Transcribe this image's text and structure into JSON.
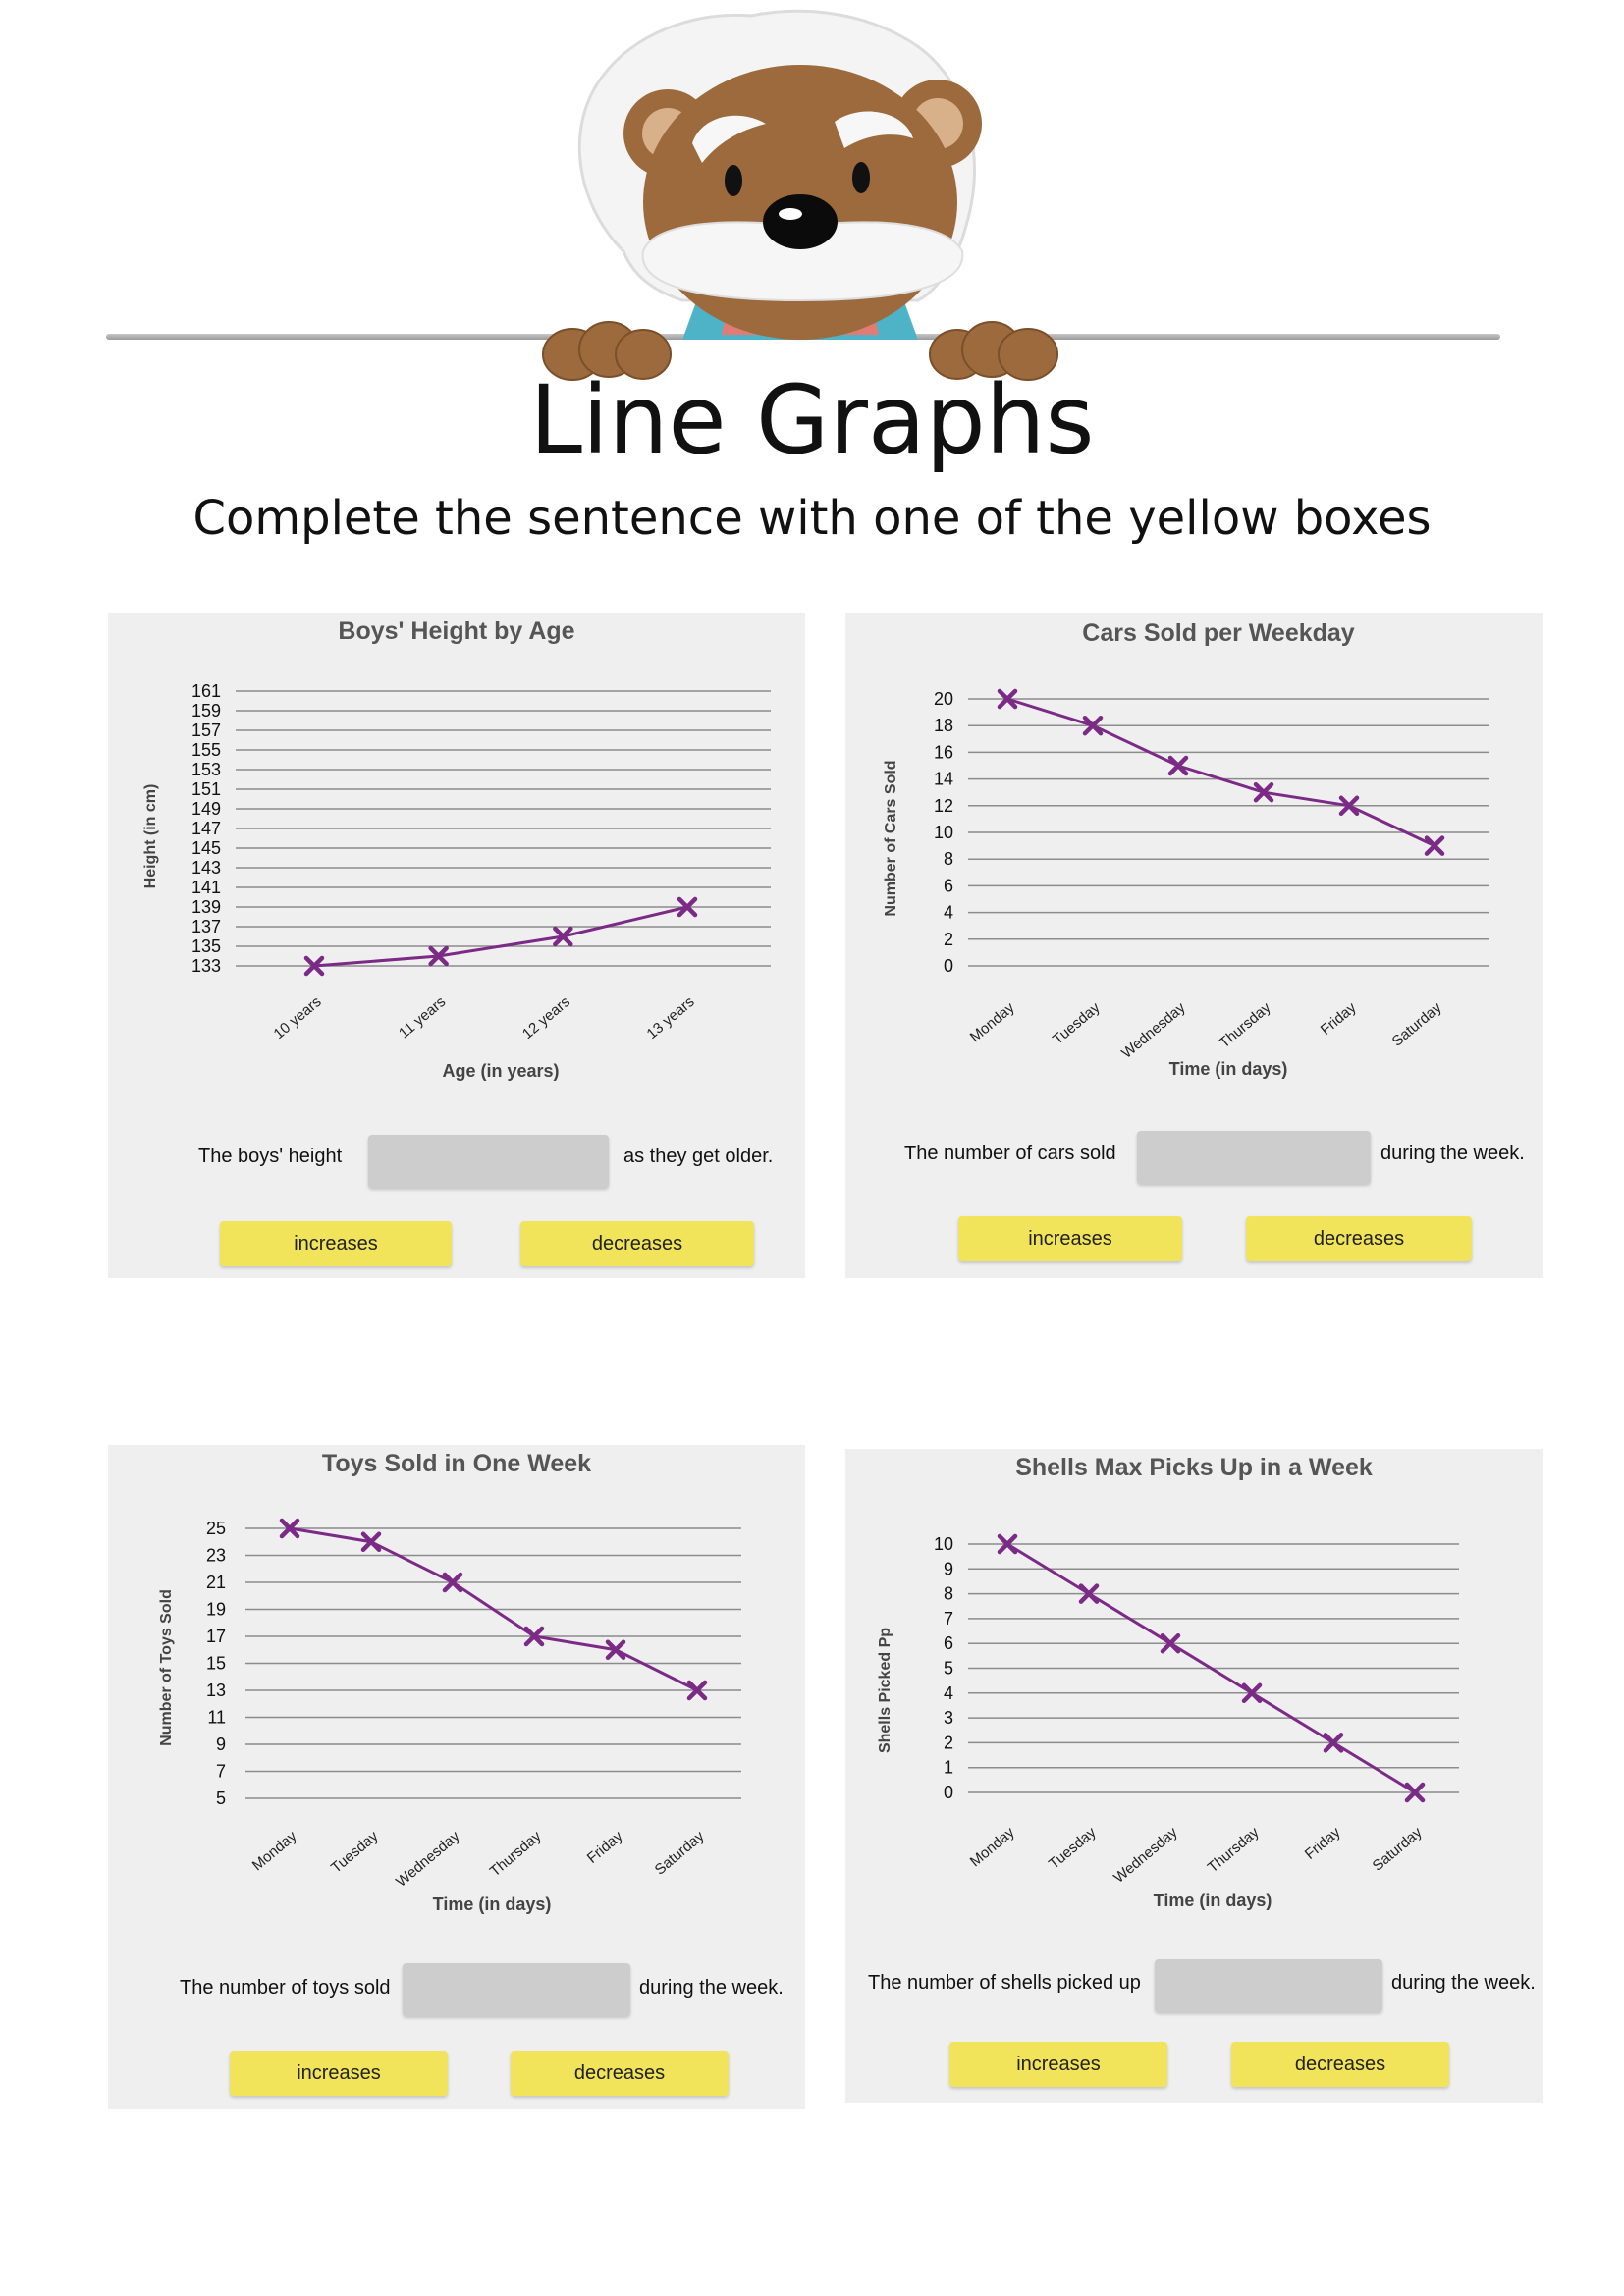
{
  "page": {
    "title": "Line Graphs",
    "subtitle": "Complete the sentence with one of the yellow boxes"
  },
  "colors": {
    "line": "#7b2a86",
    "option_bg": "#f1e45a",
    "panel_bg": "#efefef",
    "blank_bg": "#cdcdcd"
  },
  "panels": [
    {
      "sentence_before": "The boys' height",
      "sentence_after": "as they get older.",
      "options": [
        "increases",
        "decreases"
      ]
    },
    {
      "sentence_before": "The number of cars sold",
      "sentence_after": "during the week.",
      "options": [
        "increases",
        "decreases"
      ]
    },
    {
      "sentence_before": "The number of toys sold",
      "sentence_after": "during the week.",
      "options": [
        "increases",
        "decreases"
      ]
    },
    {
      "sentence_before": "The number of shells picked up",
      "sentence_after": "during the week.",
      "options": [
        "increases",
        "decreases"
      ]
    }
  ],
  "chart_data": [
    {
      "type": "line",
      "title": "Boys' Height by Age",
      "xlabel": "Age (in years)",
      "ylabel": "Height (in cm)",
      "categories": [
        "10 years",
        "11 years",
        "12 years",
        "13 years"
      ],
      "values": [
        133,
        134,
        136,
        139
      ],
      "yticks": [
        133,
        135,
        137,
        139,
        141,
        143,
        145,
        147,
        149,
        151,
        153,
        155,
        157,
        159,
        161
      ],
      "ylim": [
        133,
        161
      ],
      "grid": true,
      "marker": "x"
    },
    {
      "type": "line",
      "title": "Cars Sold per Weekday",
      "xlabel": "Time (in days)",
      "ylabel": "Number of Cars Sold",
      "categories": [
        "Monday",
        "Tuesday",
        "Wednesday",
        "Thursday",
        "Friday",
        "Saturday"
      ],
      "values": [
        20,
        18,
        15,
        13,
        12,
        9
      ],
      "yticks": [
        0,
        2,
        4,
        6,
        8,
        10,
        12,
        14,
        16,
        18,
        20
      ],
      "ylim": [
        0,
        20
      ],
      "grid": true,
      "marker": "x"
    },
    {
      "type": "line",
      "title": "Toys Sold in One Week",
      "xlabel": "Time (in days)",
      "ylabel": "Number of Toys Sold",
      "categories": [
        "Monday",
        "Tuesday",
        "Wednesday",
        "Thursday",
        "Friday",
        "Saturday"
      ],
      "values": [
        25,
        24,
        21,
        17,
        16,
        13
      ],
      "yticks": [
        5,
        7,
        9,
        11,
        13,
        15,
        17,
        19,
        21,
        23,
        25
      ],
      "ylim": [
        5,
        25
      ],
      "grid": true,
      "marker": "x"
    },
    {
      "type": "line",
      "title": "Shells Max Picks Up in a Week",
      "xlabel": "Time (in days)",
      "ylabel": "Shells Picked Pp",
      "categories": [
        "Monday",
        "Tuesday",
        "Wednesday",
        "Thursday",
        "Friday",
        "Saturday"
      ],
      "values": [
        10,
        8,
        6,
        4,
        2,
        0
      ],
      "yticks": [
        0,
        1,
        2,
        3,
        4,
        5,
        6,
        7,
        8,
        9,
        10
      ],
      "ylim": [
        0,
        10
      ],
      "grid": true,
      "marker": "x"
    }
  ]
}
